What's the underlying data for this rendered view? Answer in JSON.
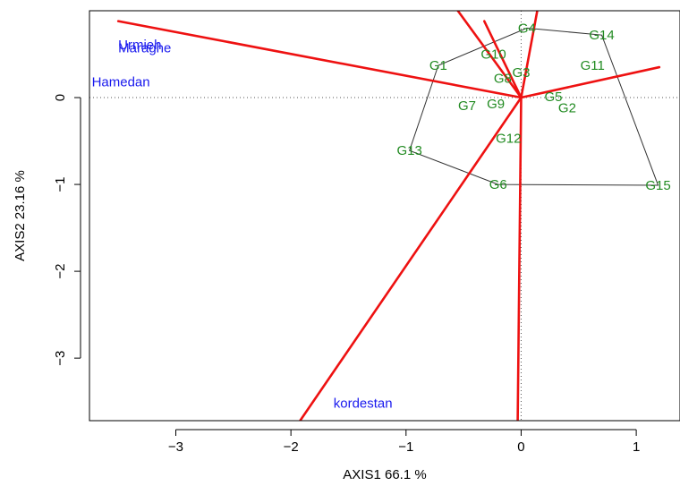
{
  "chart_data": {
    "type": "scatter",
    "xlabel": "AXIS1 66.1 %",
    "ylabel": "AXIS2 23.16 %",
    "xlim": [
      -3.75,
      1.38
    ],
    "ylim": [
      -3.72,
      1.0
    ],
    "x_ticks": [
      -3,
      -2,
      -1,
      0,
      1
    ],
    "y_ticks": [
      -3,
      -2,
      -1,
      0
    ],
    "grid": false,
    "reference_lines": {
      "x": 0,
      "y": 0,
      "style": "dotted"
    },
    "colors": {
      "genotype": "#228B22",
      "environment": "#1a1aee",
      "ray": "#ee1111",
      "hull": "#333333",
      "frame": "#000000"
    },
    "genotypes": [
      {
        "label": "G1",
        "x": -0.72,
        "y": 0.37
      },
      {
        "label": "G2",
        "x": 0.4,
        "y": -0.12
      },
      {
        "label": "G3",
        "x": 0.0,
        "y": 0.29
      },
      {
        "label": "G4",
        "x": 0.05,
        "y": 0.8
      },
      {
        "label": "G5",
        "x": 0.28,
        "y": 0.01
      },
      {
        "label": "G6",
        "x": -0.2,
        "y": -1.0
      },
      {
        "label": "G7",
        "x": -0.47,
        "y": -0.09
      },
      {
        "label": "G8",
        "x": -0.16,
        "y": 0.22
      },
      {
        "label": "G9",
        "x": -0.22,
        "y": -0.07
      },
      {
        "label": "G10",
        "x": -0.24,
        "y": 0.5
      },
      {
        "label": "G11",
        "x": 0.62,
        "y": 0.37
      },
      {
        "label": "G12",
        "x": -0.11,
        "y": -0.47
      },
      {
        "label": "G13",
        "x": -0.97,
        "y": -0.61
      },
      {
        "label": "G14",
        "x": 0.7,
        "y": 0.72
      },
      {
        "label": "G15",
        "x": 1.19,
        "y": -1.01
      }
    ],
    "environments": [
      {
        "label": "Urmieh",
        "x": -3.5,
        "y": 0.61
      },
      {
        "label": "Maraghe",
        "x": -3.5,
        "y": 0.57
      },
      {
        "label": "Hamedan",
        "x": -3.73,
        "y": 0.18
      },
      {
        "label": "kordestan",
        "x": -1.63,
        "y": -3.52
      }
    ],
    "hull_vertices": [
      "G4",
      "G14",
      "G15",
      "G6",
      "G13",
      "G1"
    ],
    "rays": [
      {
        "x": -3.5,
        "y": 0.88
      },
      {
        "x": -0.55,
        "y": 1.0
      },
      {
        "x": 0.14,
        "y": 1.0
      },
      {
        "x": 1.2,
        "y": 0.35
      },
      {
        "x": -1.92,
        "y": -3.72
      },
      {
        "x": -0.03,
        "y": -3.72
      },
      {
        "x": -0.32,
        "y": 0.88
      }
    ]
  }
}
